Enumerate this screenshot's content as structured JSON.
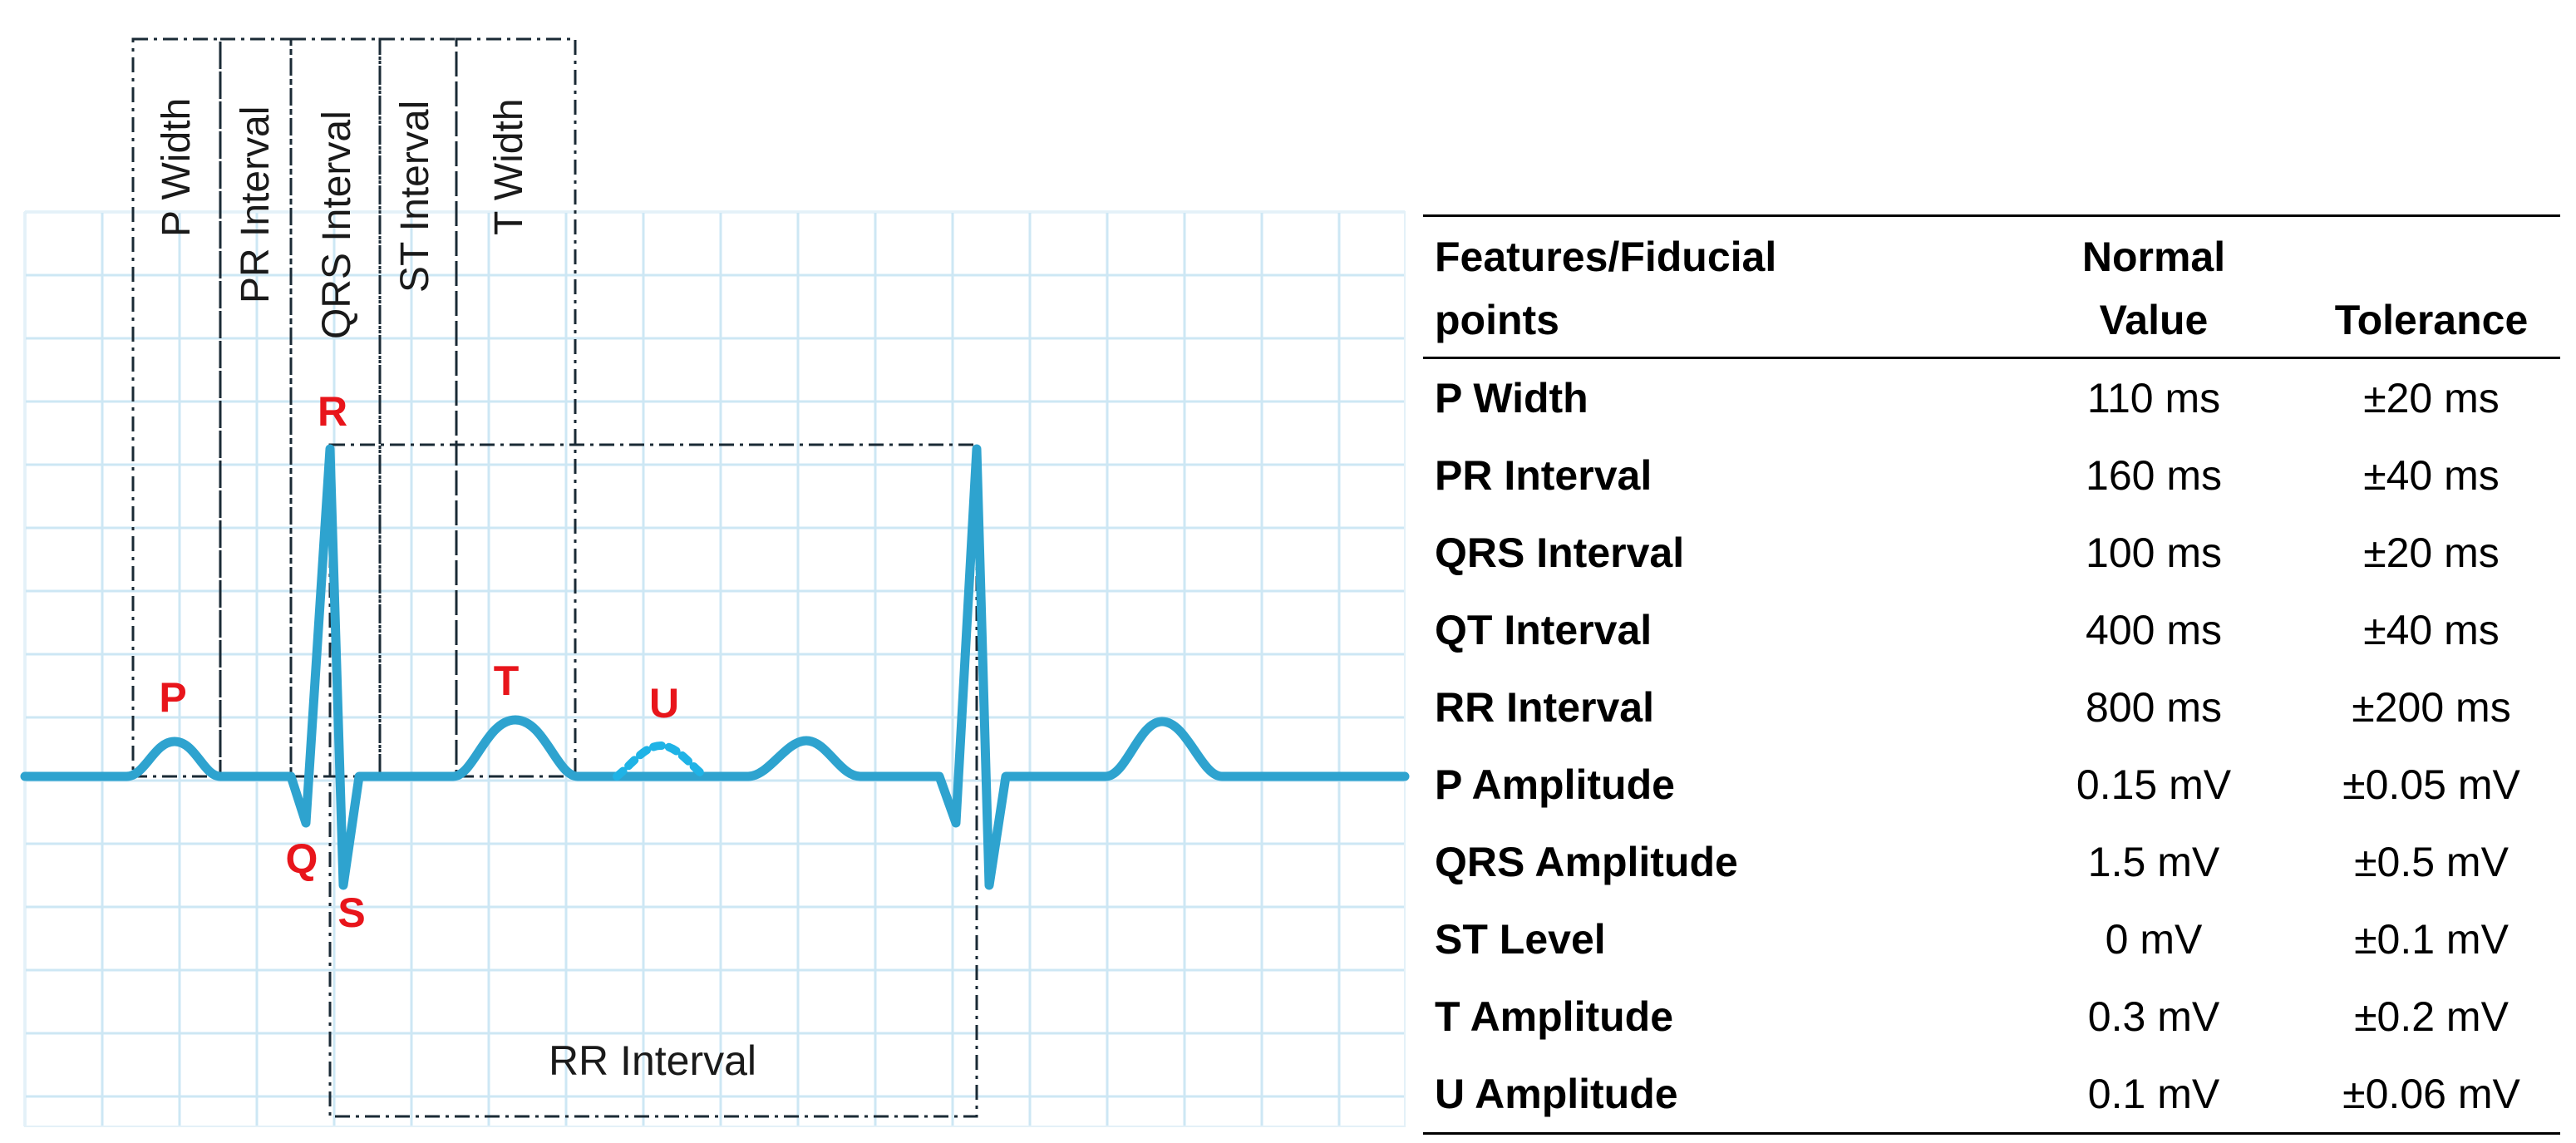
{
  "diagram": {
    "interval_boxes": [
      {
        "id": "p-width",
        "label": "P Width"
      },
      {
        "id": "pr-interval",
        "label": "PR Interval"
      },
      {
        "id": "qrs-interval",
        "label": "QRS Interval"
      },
      {
        "id": "st-interval",
        "label": "ST Interval"
      },
      {
        "id": "t-width",
        "label": "T Width"
      }
    ],
    "waves": {
      "p": "P",
      "q": "Q",
      "r": "R",
      "s": "S",
      "t": "T",
      "u": "U"
    },
    "rr_label": "RR Interval",
    "colors": {
      "trace": "#2ea3cf",
      "grid": "#cde7f4",
      "wave_label": "#e8151b",
      "u_wave": "#1fb3e6",
      "box_line": "#1a2a35"
    }
  },
  "table": {
    "headers": {
      "feature": [
        "Features/Fiducial",
        "points"
      ],
      "normal": [
        "Normal",
        "Value"
      ],
      "tolerance": "Tolerance"
    },
    "rows": [
      {
        "feature": "P Width",
        "normal": "110 ms",
        "tolerance": "±20 ms"
      },
      {
        "feature": "PR Interval",
        "normal": "160 ms",
        "tolerance": "±40 ms"
      },
      {
        "feature": "QRS Interval",
        "normal": "100 ms",
        "tolerance": "±20 ms"
      },
      {
        "feature": "QT Interval",
        "normal": "400 ms",
        "tolerance": "±40 ms"
      },
      {
        "feature": "RR Interval",
        "normal": "800 ms",
        "tolerance": "±200 ms"
      },
      {
        "feature": "P Amplitude",
        "normal": "0.15 mV",
        "tolerance": "±0.05 mV"
      },
      {
        "feature": "QRS Amplitude",
        "normal": "1.5 mV",
        "tolerance": "±0.5 mV"
      },
      {
        "feature": "ST Level",
        "normal": "0 mV",
        "tolerance": "±0.1 mV"
      },
      {
        "feature": "T Amplitude",
        "normal": "0.3 mV",
        "tolerance": "±0.2 mV"
      },
      {
        "feature": "U Amplitude",
        "normal": "0.1 mV",
        "tolerance": "±0.06 mV"
      }
    ]
  }
}
